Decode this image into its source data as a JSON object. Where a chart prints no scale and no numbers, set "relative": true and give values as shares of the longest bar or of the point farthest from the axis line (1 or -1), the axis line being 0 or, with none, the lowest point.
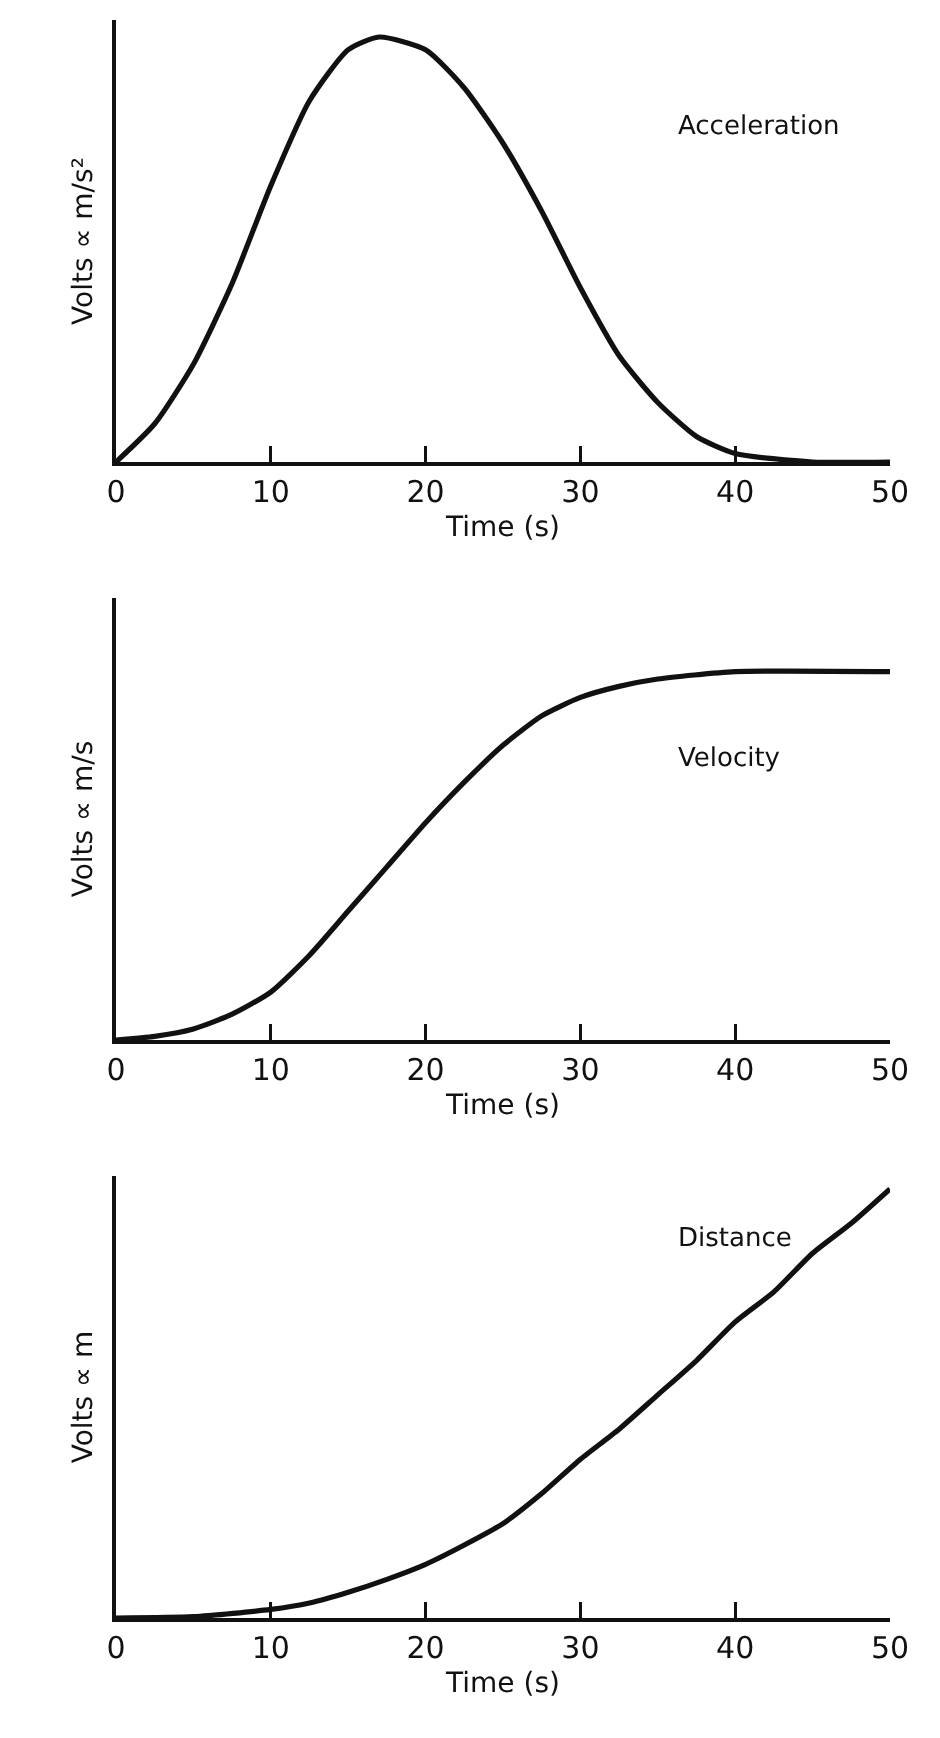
{
  "chart_data": [
    {
      "type": "line",
      "relative": true,
      "xlabel": "Time (s)",
      "ylabel": "Volts ∝ m/s²",
      "xlim": [
        0,
        50
      ],
      "xticks": [
        0,
        10,
        20,
        30,
        40,
        50
      ],
      "grid": false,
      "legend": false,
      "line_style": "solid",
      "marker": "none",
      "x": [
        0,
        2.5,
        5,
        7.5,
        10,
        12.5,
        15,
        17,
        20,
        22.5,
        25,
        27.5,
        30,
        32.5,
        35,
        37.5,
        40,
        45,
        50
      ],
      "series": [
        {
          "name": "Acceleration",
          "color": "#111111",
          "values": [
            0,
            0.09,
            0.23,
            0.42,
            0.65,
            0.85,
            0.97,
            1.0,
            0.97,
            0.88,
            0.75,
            0.59,
            0.41,
            0.25,
            0.14,
            0.06,
            0.02,
            0,
            0
          ]
        }
      ]
    },
    {
      "type": "line",
      "relative": true,
      "xlabel": "Time (s)",
      "ylabel": "Volts ∝ m/s",
      "xlim": [
        0,
        50
      ],
      "xticks": [
        0,
        10,
        20,
        30,
        40,
        50
      ],
      "grid": false,
      "legend": false,
      "line_style": "solid",
      "marker": "none",
      "x": [
        0,
        2.5,
        5,
        7.5,
        10,
        12.5,
        15,
        17.5,
        20,
        22.5,
        25,
        27.5,
        30,
        32.5,
        35,
        40,
        50
      ],
      "series": [
        {
          "name": "Velocity",
          "color": "#111111",
          "values": [
            0,
            0.01,
            0.03,
            0.07,
            0.13,
            0.23,
            0.35,
            0.47,
            0.59,
            0.7,
            0.8,
            0.88,
            0.93,
            0.96,
            0.98,
            1.0,
            1.0
          ]
        }
      ]
    },
    {
      "type": "line",
      "relative": true,
      "xlabel": "Time (s)",
      "ylabel": "Volts ∝ m",
      "xlim": [
        0,
        50
      ],
      "xticks": [
        0,
        10,
        20,
        30,
        40,
        50
      ],
      "grid": false,
      "legend": false,
      "line_style": "solid",
      "marker": "none",
      "x": [
        0,
        5,
        10,
        12.5,
        15,
        17.5,
        20,
        22.5,
        25,
        27.5,
        30,
        32.5,
        35,
        37.5,
        40,
        42.5,
        45,
        47.5,
        50
      ],
      "series": [
        {
          "name": "Distance",
          "color": "#111111",
          "values": [
            0,
            0.003,
            0.02,
            0.035,
            0.06,
            0.09,
            0.125,
            0.17,
            0.22,
            0.29,
            0.37,
            0.44,
            0.52,
            0.6,
            0.69,
            0.76,
            0.85,
            0.92,
            1.0
          ]
        }
      ]
    }
  ]
}
